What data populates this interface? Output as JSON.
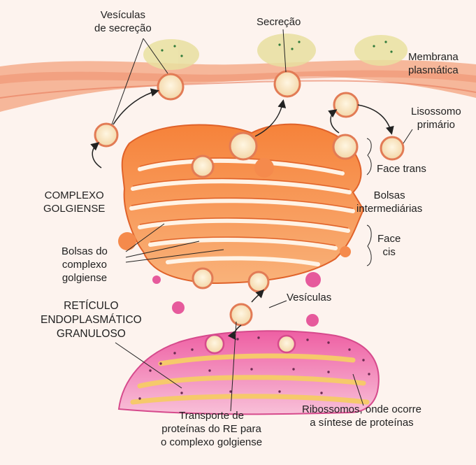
{
  "labels": {
    "vesiculas_secrecao": "Vesículas\nde secreção",
    "secrecao": "Secreção",
    "membrana": "Membrana\nplasmática",
    "lisossomo": "Lisossomo\nprimário",
    "face_trans": "Face trans",
    "complexo": "COMPLEXO\nGOLGIENSE",
    "bolsas_intermediarias": "Bolsas\nintermediárias",
    "face_cis": "Face\ncis",
    "bolsas_complexo": "Bolsas do\ncomplexo\ngolgiense",
    "vesiculas": "Vesículas",
    "reticulo": "RETÍCULO\nENDOPLASMÁTICO\nGRANULOSO",
    "transporte": "Transporte de\nproteínas do RE para\no complexo golgiense",
    "ribossomos": "Ribossomos, onde ocorre\na síntese de proteínas"
  },
  "colors": {
    "background": "#fdf3ee",
    "membrane": "#f3a583",
    "golgi": "#f47f3c",
    "golgi_light": "#f9c39a",
    "er": "#e65a9c",
    "er_light": "#f6c96b",
    "vesicle_fill": "#fbe9c8",
    "leader": "#222222"
  }
}
